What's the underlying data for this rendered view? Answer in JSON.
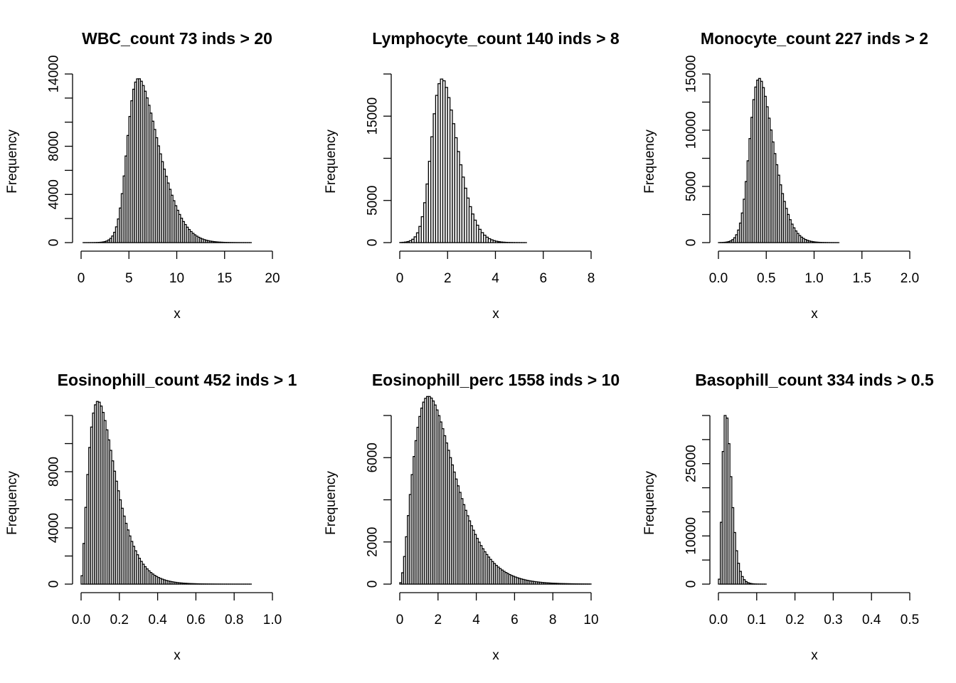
{
  "chart_data": [
    {
      "type": "bar",
      "title": "WBC_count 73 inds > 20",
      "xlabel": "x",
      "ylabel": "Frequency",
      "xlim": [
        0,
        20
      ],
      "ylim": [
        0,
        14000
      ],
      "xticks": [
        0,
        5,
        10,
        15,
        20
      ],
      "yticks": [
        0,
        4000,
        8000,
        14000
      ],
      "yticks_minor": [
        2000,
        6000,
        10000,
        12000
      ],
      "binwidth": 0.2,
      "dist": {
        "kind": "skewnorm",
        "loc": 4.8,
        "scale": 2.8,
        "alpha": 3.5,
        "peak": 13600
      }
    },
    {
      "type": "bar",
      "title": "Lymphocyte_count 140 inds > 8",
      "xlabel": "x",
      "ylabel": "Frequency",
      "xlim": [
        0,
        8
      ],
      "ylim": [
        0,
        20000
      ],
      "xticks": [
        0,
        2,
        4,
        6,
        8
      ],
      "yticks": [
        0,
        5000,
        15000
      ],
      "yticks_minor": [
        10000,
        20000
      ],
      "binwidth": 0.1,
      "dist": {
        "kind": "skewnorm",
        "loc": 1.35,
        "scale": 0.85,
        "alpha": 2.3,
        "peak": 19400
      }
    },
    {
      "type": "bar",
      "title": "Monocyte_count 227 inds > 2",
      "xlabel": "x",
      "ylabel": "Frequency",
      "xlim": [
        0,
        2
      ],
      "ylim": [
        0,
        15000
      ],
      "xticks": [
        0.0,
        0.5,
        1.0,
        1.5,
        2.0
      ],
      "xtick_labels": [
        "0.0",
        "0.5",
        "1.0",
        "1.5",
        "2.0"
      ],
      "yticks": [
        0,
        5000,
        10000,
        15000
      ],
      "yticks_minor": [
        2500,
        7500,
        12500
      ],
      "binwidth": 0.02,
      "dist": {
        "kind": "skewnorm",
        "loc": 0.33,
        "scale": 0.2,
        "alpha": 2.5,
        "peak": 14600
      }
    },
    {
      "type": "bar",
      "title": "Eosinophill_count 452 inds > 1",
      "xlabel": "x",
      "ylabel": "Frequency",
      "xlim": [
        0,
        1
      ],
      "ylim": [
        0,
        12000
      ],
      "xticks": [
        0.0,
        0.2,
        0.4,
        0.6,
        0.8,
        1.0
      ],
      "xtick_labels": [
        "0.0",
        "0.2",
        "0.4",
        "0.6",
        "0.8",
        "1.0"
      ],
      "yticks": [
        0,
        4000,
        8000
      ],
      "yticks_minor": [
        2000,
        6000,
        10000,
        12000
      ],
      "binwidth": 0.01,
      "dist": {
        "kind": "gamma",
        "shape": 2.6,
        "scale": 0.055,
        "peak": 13000
      }
    },
    {
      "type": "bar",
      "title": "Eosinophill_perc 1558 inds > 10",
      "xlabel": "x",
      "ylabel": "Frequency",
      "xlim": [
        0,
        10
      ],
      "ylim": [
        0,
        8000
      ],
      "xticks": [
        0,
        2,
        4,
        6,
        8,
        10
      ],
      "yticks": [
        0,
        2000,
        6000
      ],
      "yticks_minor": [
        4000,
        8000
      ],
      "binwidth": 0.1,
      "dist": {
        "kind": "gamma",
        "shape": 3.0,
        "scale": 0.75,
        "peak": 8900
      }
    },
    {
      "type": "bar",
      "title": "Basophill_count 334 inds > 0.5",
      "xlabel": "x",
      "ylabel": "Frequency",
      "xlim": [
        0,
        0.5
      ],
      "ylim": [
        0,
        35000
      ],
      "xticks": [
        0.0,
        0.1,
        0.2,
        0.3,
        0.4,
        0.5
      ],
      "xtick_labels": [
        "0.0",
        "0.1",
        "0.2",
        "0.3",
        "0.4",
        "0.5"
      ],
      "yticks": [
        0,
        10000,
        25000
      ],
      "yticks_minor": [
        5000,
        15000,
        20000,
        30000,
        35000
      ],
      "binwidth": 0.005,
      "dist": {
        "kind": "gamma",
        "shape": 4.0,
        "scale": 0.0065,
        "peak": 35000
      }
    }
  ]
}
